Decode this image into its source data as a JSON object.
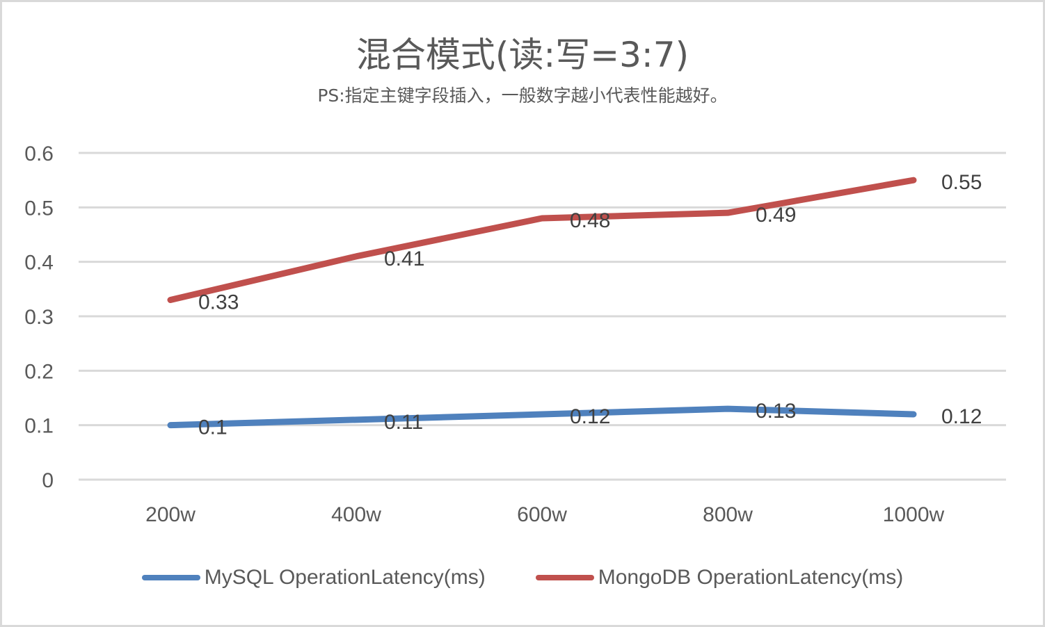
{
  "chart_data": {
    "type": "line",
    "title": "混合模式(读:写=3:7)",
    "subtitle": "PS:指定主键字段插入，一般数字越小代表性能越好。",
    "xlabel": "",
    "ylabel": "",
    "categories": [
      "200w",
      "400w",
      "600w",
      "800w",
      "1000w"
    ],
    "ylim": [
      0,
      0.6
    ],
    "yticks": [
      "0",
      "0.1",
      "0.2",
      "0.3",
      "0.4",
      "0.5",
      "0.6"
    ],
    "grid": true,
    "legend_position": "bottom",
    "series": [
      {
        "name": "MySQL OperationLatency(ms)",
        "color": "#4F81BD",
        "values": [
          0.1,
          0.11,
          0.12,
          0.13,
          0.12
        ],
        "labels": [
          "0.1",
          "0.11",
          "0.12",
          "0.13",
          "0.12"
        ]
      },
      {
        "name": "MongoDB OperationLatency(ms)",
        "color": "#C0504D",
        "values": [
          0.33,
          0.41,
          0.48,
          0.49,
          0.55
        ],
        "labels": [
          "0.33",
          "0.41",
          "0.48",
          "0.49",
          "0.55"
        ]
      }
    ]
  }
}
